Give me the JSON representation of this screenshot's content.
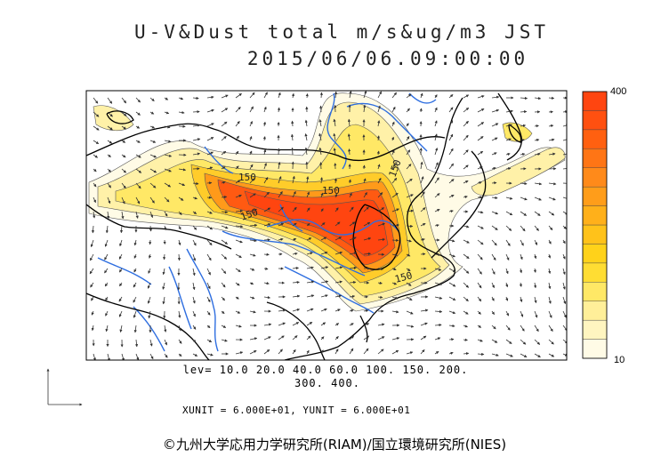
{
  "title": {
    "line1": "U-V&Dust total m/s&ug/m3 JST",
    "line2": "2015/06/06.09:00:00"
  },
  "colorbar": {
    "max_label": "400",
    "min_label": "10",
    "colors": [
      "#fffbe6",
      "#fff5c0",
      "#ffef99",
      "#ffe866",
      "#ffdd33",
      "#ffd21a",
      "#ffc21a",
      "#ffb01a",
      "#ff9d1a",
      "#ff8a1a",
      "#ff7515",
      "#ff6010",
      "#ff5010",
      "#ff4510"
    ]
  },
  "levels": {
    "line1": "lev= 10.0 20.0 40.0 60.0 100. 150. 200.",
    "line2": "300. 400."
  },
  "contour_labels": [
    "150",
    "150",
    "150",
    "150",
    "150"
  ],
  "units": "XUNIT = 6.000E+01, YUNIT = 6.000E+01",
  "copyright": "©九州大学応用力学研究所(RIAM)/国立環境研究所(NIES)",
  "colors": {
    "coast": "#000000",
    "rivers": "#2e6ee0",
    "plume_core": "#ff4a12",
    "arrows": "#333333"
  }
}
